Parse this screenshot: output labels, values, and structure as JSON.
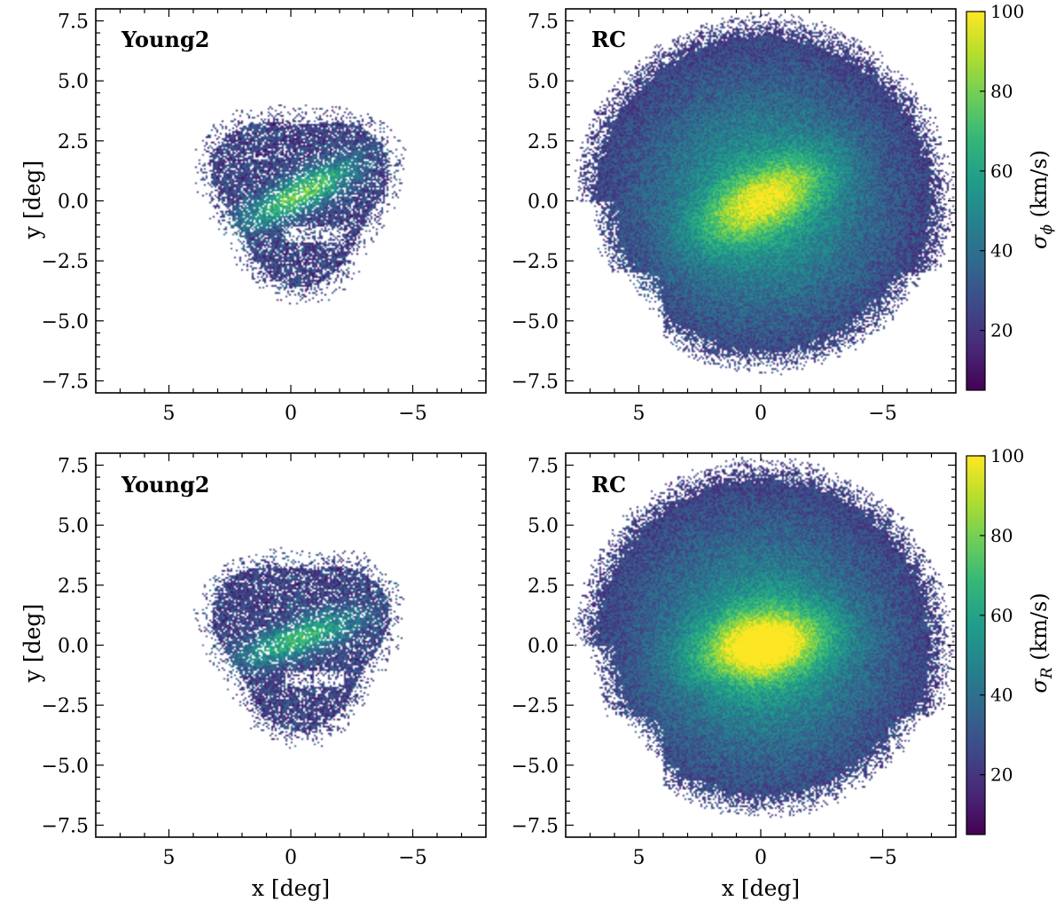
{
  "chart_data": [
    {
      "type": "heatmap",
      "panel": "Young2 (top)",
      "label": "Young2",
      "quantity": "sigma_phi",
      "xlabel": "",
      "ylabel": "y [deg]",
      "xlim": [
        8,
        -8
      ],
      "ylim": [
        -8,
        8
      ],
      "x_ticks": [
        "5",
        "0",
        "−5"
      ],
      "y_ticks": [
        "7.5",
        "5.0",
        "2.5",
        "0.0",
        "−2.5",
        "−5.0",
        "−7.5"
      ],
      "extent": {
        "center_x": -0.4,
        "center_y": 0.3,
        "radius": 3.4,
        "bar_angle_deg": 28,
        "peak_value": 85
      },
      "clim": [
        5,
        100
      ]
    },
    {
      "type": "heatmap",
      "panel": "RC (top)",
      "label": "RC",
      "quantity": "sigma_phi",
      "xlabel": "",
      "ylabel": "",
      "xlim": [
        8,
        -8
      ],
      "ylim": [
        -8,
        8
      ],
      "x_ticks": [
        "5",
        "0",
        "−5"
      ],
      "y_ticks": [
        "7.5",
        "5.0",
        "2.5",
        "0.0",
        "−2.5",
        "−5.0",
        "−7.5"
      ],
      "extent": {
        "center_x": -0.1,
        "center_y": 0.0,
        "radius": 7.9,
        "bar_angle_deg": 28,
        "peak_value": 100
      },
      "clim": [
        5,
        100
      ],
      "colorbar": {
        "label_symbol": "σ",
        "label_subscript": "ϕ",
        "label_units": "(km/s)",
        "ticks": [
          "20",
          "40",
          "60",
          "80",
          "100"
        ],
        "tick_values": [
          20,
          40,
          60,
          80,
          100
        ]
      }
    },
    {
      "type": "heatmap",
      "panel": "Young2 (bottom)",
      "label": "Young2",
      "quantity": "sigma_R",
      "xlabel": "x [deg]",
      "ylabel": "y [deg]",
      "xlim": [
        8,
        -8
      ],
      "ylim": [
        -8,
        8
      ],
      "x_ticks": [
        "5",
        "0",
        "−5"
      ],
      "y_ticks": [
        "7.5",
        "5.0",
        "2.5",
        "0.0",
        "−2.5",
        "−5.0",
        "−7.5"
      ],
      "extent": {
        "center_x": -0.4,
        "center_y": 0.3,
        "radius": 3.4,
        "bar_angle_deg": 20,
        "peak_value": 75
      },
      "clim": [
        5,
        100
      ]
    },
    {
      "type": "heatmap",
      "panel": "RC (bottom)",
      "label": "RC",
      "quantity": "sigma_R",
      "xlabel": "x [deg]",
      "ylabel": "",
      "xlim": [
        8,
        -8
      ],
      "ylim": [
        -8,
        8
      ],
      "x_ticks": [
        "5",
        "0",
        "−5"
      ],
      "y_ticks": [
        "7.5",
        "5.0",
        "2.5",
        "0.0",
        "−2.5",
        "−5.0",
        "−7.5"
      ],
      "extent": {
        "center_x": -0.1,
        "center_y": 0.0,
        "radius": 7.9,
        "bar_angle_deg": 10,
        "peak_value": 100
      },
      "clim": [
        5,
        100
      ],
      "colorbar": {
        "label_symbol": "σ",
        "label_subscript": "R",
        "label_units": "(km/s)",
        "ticks": [
          "20",
          "40",
          "60",
          "80",
          "100"
        ],
        "tick_values": [
          20,
          40,
          60,
          80,
          100
        ]
      }
    }
  ],
  "colormap": {
    "name": "viridis",
    "stops": [
      "#440154",
      "#482878",
      "#3e4989",
      "#31688e",
      "#26828e",
      "#1f9e89",
      "#35b779",
      "#6ece58",
      "#b5de2b",
      "#fde725"
    ]
  }
}
